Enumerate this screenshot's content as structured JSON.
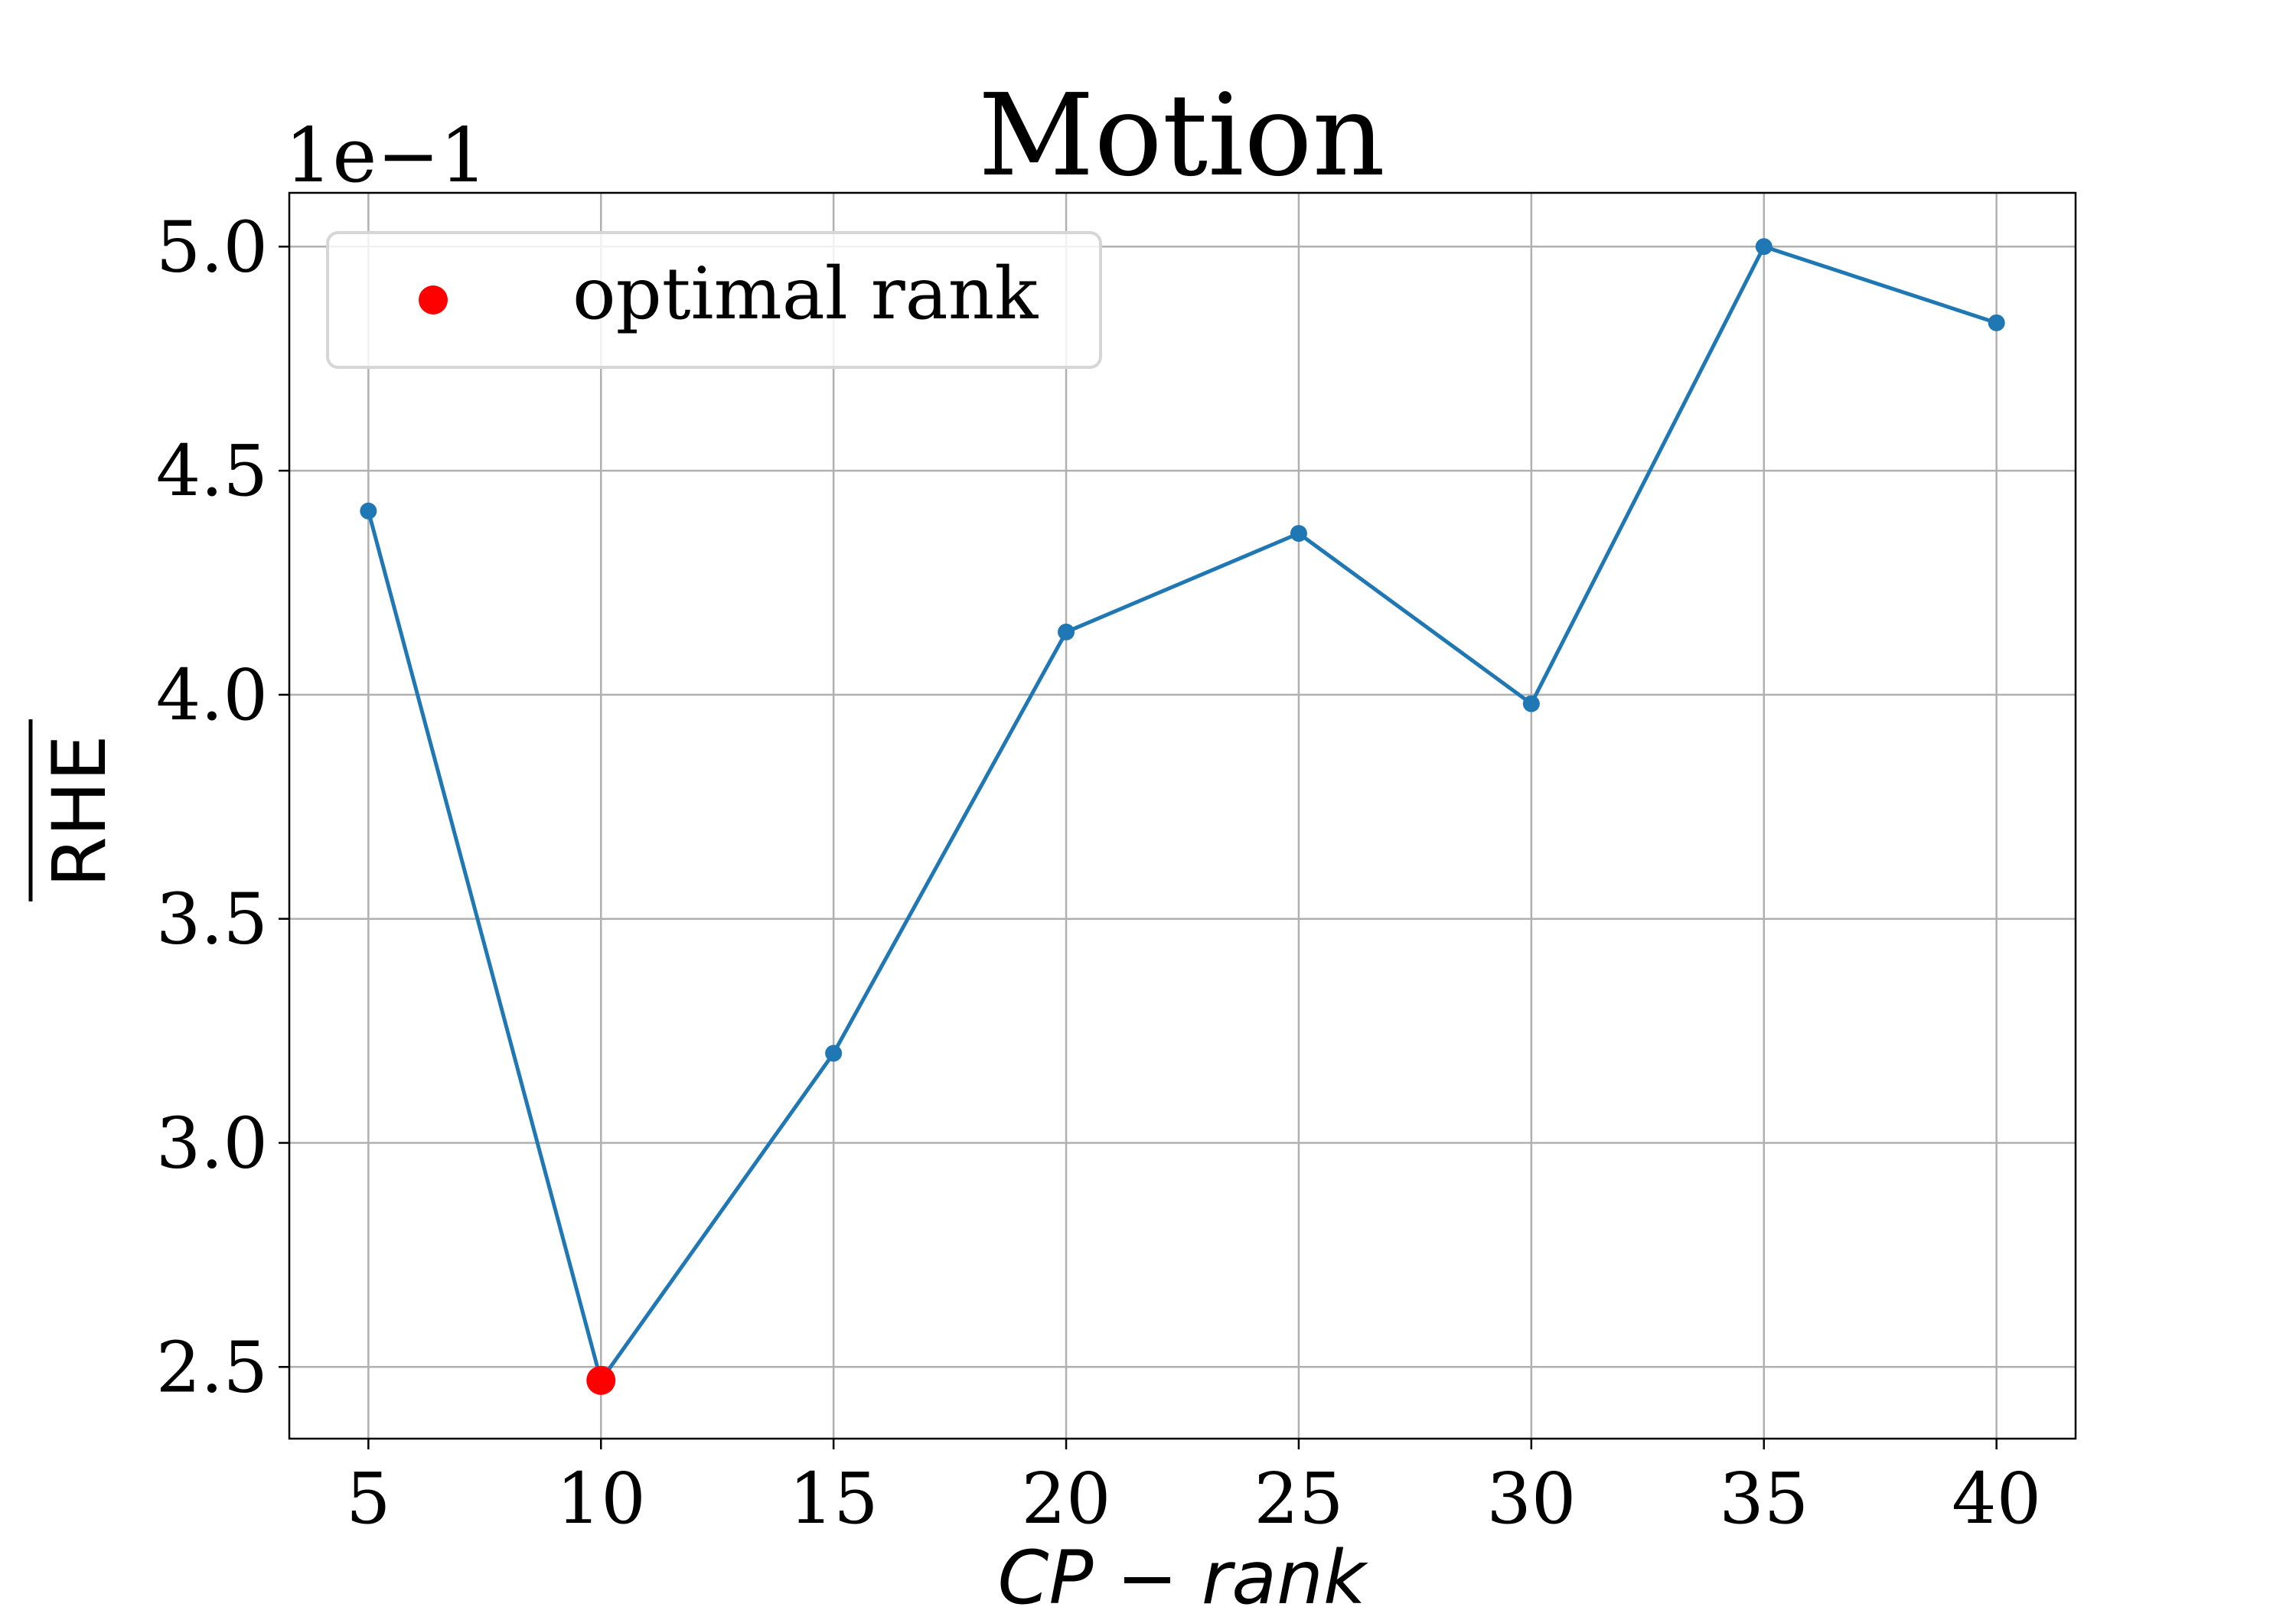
{
  "chart_data": {
    "type": "line",
    "title": "Motion",
    "xlabel": "CP − rank",
    "ylabel": "RHE",
    "ylabel_overline": true,
    "y_offset_label": "1e−1",
    "x": [
      5,
      10,
      15,
      20,
      25,
      30,
      35,
      40
    ],
    "x_ticks": [
      5,
      10,
      15,
      20,
      25,
      30,
      35,
      40
    ],
    "x_tick_labels": [
      "5",
      "10",
      "15",
      "20",
      "25",
      "30",
      "35",
      "40"
    ],
    "y_ticks": [
      2.5,
      3.0,
      3.5,
      4.0,
      4.5,
      5.0
    ],
    "y_tick_labels": [
      "2.5",
      "3.0",
      "3.5",
      "4.0",
      "4.5",
      "5.0"
    ],
    "xlim": [
      3.3,
      41.7
    ],
    "ylim": [
      2.34,
      5.12
    ],
    "series": [
      {
        "values": [
          4.41,
          2.47,
          3.2,
          4.14,
          4.36,
          3.98,
          5.0,
          4.83
        ],
        "color": "#1f77b4"
      }
    ],
    "highlight": {
      "name": "optimal rank",
      "x": 10,
      "y": 2.47,
      "color": "#ff0000"
    },
    "legend": {
      "entries": [
        "optimal rank"
      ],
      "placement": "upper-left"
    },
    "grid": true
  }
}
